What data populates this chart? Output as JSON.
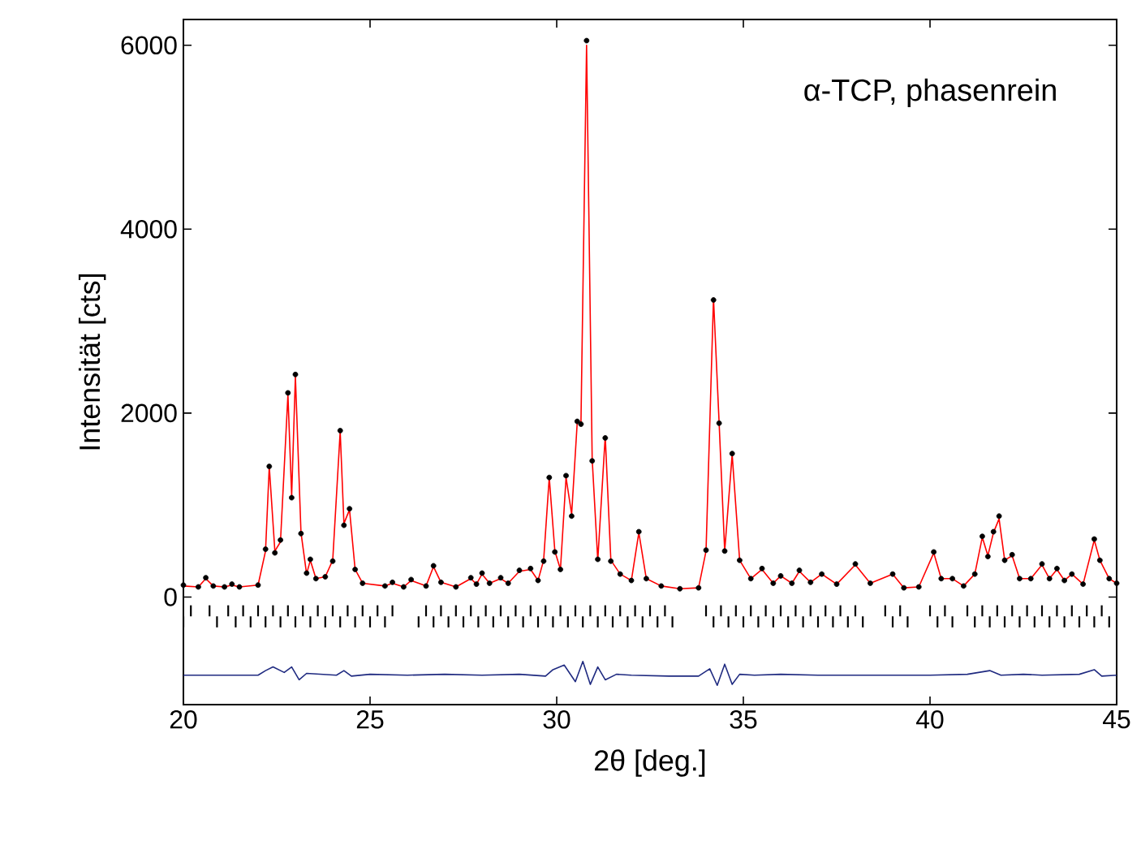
{
  "chart_data": {
    "type": "line",
    "xlabel": "2θ [deg.]",
    "ylabel": "Intensität [cts]",
    "annotations": [
      "α-TCP, phasenrein"
    ],
    "xlim": [
      20,
      45
    ],
    "xticks": [
      20,
      25,
      30,
      35,
      40,
      45
    ],
    "ylim": [
      -1170,
      6280
    ],
    "yticks": [
      0,
      2000,
      4000,
      6000
    ],
    "grid": false,
    "x": [
      20,
      20.4,
      20.6,
      20.8,
      21.1,
      21.3,
      21.5,
      22.0,
      22.2,
      22.3,
      22.45,
      22.6,
      22.8,
      22.9,
      23.0,
      23.15,
      23.3,
      23.4,
      23.55,
      23.8,
      24.0,
      24.2,
      24.3,
      24.45,
      24.6,
      24.8,
      25.4,
      25.6,
      25.9,
      26.1,
      26.5,
      26.7,
      26.9,
      27.3,
      27.7,
      27.85,
      28.0,
      28.2,
      28.5,
      28.7,
      29.0,
      29.3,
      29.5,
      29.65,
      29.8,
      29.95,
      30.1,
      30.25,
      30.4,
      30.55,
      30.65,
      30.8,
      30.95,
      31.1,
      31.3,
      31.45,
      31.7,
      32.0,
      32.2,
      32.4,
      32.8,
      33.3,
      33.8,
      34.0,
      34.2,
      34.35,
      34.5,
      34.7,
      34.9,
      35.2,
      35.5,
      35.8,
      36.0,
      36.3,
      36.5,
      36.8,
      37.1,
      37.5,
      38.0,
      38.4,
      39.0,
      39.3,
      39.7,
      40.1,
      40.3,
      40.6,
      40.9,
      41.2,
      41.4,
      41.55,
      41.7,
      41.85,
      42.0,
      42.2,
      42.4,
      42.7,
      43.0,
      43.2,
      43.4,
      43.6,
      43.8,
      44.1,
      44.4,
      44.55,
      44.8,
      45
    ],
    "series": [
      {
        "type": "scatter",
        "marker": "circle",
        "color": "#000000",
        "values": [
          130,
          110,
          210,
          120,
          110,
          140,
          110,
          130,
          520,
          1420,
          480,
          620,
          2220,
          1080,
          2420,
          690,
          260,
          410,
          200,
          220,
          390,
          1810,
          780,
          960,
          300,
          150,
          120,
          160,
          110,
          190,
          120,
          340,
          160,
          110,
          210,
          140,
          260,
          150,
          210,
          150,
          290,
          310,
          180,
          390,
          1300,
          490,
          300,
          1320,
          880,
          1910,
          1880,
          6050,
          1480,
          410,
          1730,
          390,
          250,
          180,
          710,
          200,
          120,
          90,
          100,
          510,
          3230,
          1890,
          500,
          1560,
          400,
          200,
          310,
          150,
          230,
          150,
          290,
          160,
          250,
          140,
          360,
          150,
          250,
          100,
          110,
          490,
          200,
          200,
          120,
          250,
          660,
          440,
          710,
          880,
          400,
          460,
          200,
          200,
          360,
          200,
          310,
          180,
          250,
          140,
          630,
          400,
          200,
          150
        ]
      },
      {
        "color": "#ff0000",
        "values": [
          120,
          110,
          200,
          120,
          110,
          130,
          110,
          130,
          500,
          1420,
          500,
          600,
          2200,
          1100,
          2400,
          700,
          250,
          400,
          200,
          220,
          400,
          1800,
          800,
          950,
          300,
          150,
          120,
          150,
          110,
          180,
          120,
          330,
          160,
          110,
          200,
          140,
          250,
          150,
          200,
          150,
          280,
          300,
          180,
          400,
          1300,
          500,
          300,
          1300,
          900,
          1900,
          1900,
          6000,
          1500,
          400,
          1750,
          400,
          250,
          180,
          700,
          200,
          120,
          90,
          100,
          500,
          3250,
          1900,
          500,
          1550,
          400,
          200,
          300,
          150,
          230,
          150,
          280,
          160,
          250,
          140,
          350,
          150,
          250,
          100,
          110,
          480,
          200,
          200,
          120,
          250,
          650,
          450,
          700,
          850,
          400,
          450,
          200,
          200,
          350,
          200,
          300,
          180,
          250,
          140,
          620,
          400,
          200,
          150
        ]
      },
      {
        "type": "bar",
        "color": "#000000",
        "x": [
          20.0,
          20.2,
          20.7,
          20.9,
          21.2,
          21.4,
          21.6,
          21.8,
          22.0,
          22.2,
          22.4,
          22.6,
          22.8,
          23.0,
          23.2,
          23.4,
          23.6,
          23.8,
          24.0,
          24.2,
          24.4,
          24.6,
          24.8,
          25.0,
          25.2,
          25.4,
          25.6,
          26.3,
          26.5,
          26.7,
          26.9,
          27.1,
          27.3,
          27.5,
          27.7,
          27.9,
          28.1,
          28.3,
          28.5,
          28.7,
          28.9,
          29.1,
          29.3,
          29.5,
          29.7,
          29.9,
          30.1,
          30.3,
          30.5,
          30.7,
          30.9,
          31.1,
          31.3,
          31.5,
          31.7,
          31.9,
          32.1,
          32.3,
          32.5,
          32.7,
          32.9,
          33.1,
          34.0,
          34.2,
          34.4,
          34.6,
          34.8,
          35.0,
          35.2,
          35.4,
          35.6,
          35.8,
          36.0,
          36.2,
          36.4,
          36.6,
          36.8,
          37.0,
          37.2,
          37.4,
          37.6,
          37.8,
          38.0,
          38.2,
          38.8,
          39.0,
          39.2,
          39.4,
          40.0,
          40.2,
          40.4,
          40.6,
          41.0,
          41.2,
          41.4,
          41.6,
          41.8,
          42.0,
          42.2,
          42.4,
          42.6,
          42.8,
          43.0,
          43.2,
          43.4,
          43.6,
          43.8,
          44.0,
          44.2,
          44.4,
          44.6,
          44.8
        ],
        "base": [
          -330,
          -210,
          -210,
          -330,
          -210,
          -330,
          -210,
          -330,
          -210,
          -330,
          -210,
          -330,
          -210,
          -330,
          -210,
          -330,
          -210,
          -330,
          -210,
          -330,
          -210,
          -330,
          -210,
          -330,
          -210,
          -330,
          -210,
          -330,
          -210,
          -330,
          -210,
          -330,
          -210,
          -330,
          -210,
          -330,
          -210,
          -330,
          -210,
          -330,
          -210,
          -330,
          -210,
          -330,
          -210,
          -330,
          -210,
          -330,
          -210,
          -330,
          -210,
          -330,
          -210,
          -330,
          -210,
          -330,
          -210,
          -330,
          -210,
          -330,
          -210,
          -330,
          -210,
          -330,
          -210,
          -330,
          -210,
          -330,
          -210,
          -330,
          -210,
          -330,
          -210,
          -330,
          -210,
          -330,
          -210,
          -330,
          -210,
          -330,
          -210,
          -330,
          -210,
          -330,
          -210,
          -330,
          -210,
          -330,
          -210,
          -330,
          -210,
          -330,
          -210,
          -330,
          -210,
          -330,
          -210,
          -330,
          -210,
          -330,
          -210,
          -330,
          -210,
          -330,
          -210,
          -330,
          -210,
          -330,
          -210,
          -330,
          -210,
          -330
        ],
        "values": [
          120,
          120,
          120,
          120,
          120,
          120,
          120,
          120,
          120,
          120,
          120,
          120,
          120,
          120,
          120,
          120,
          120,
          120,
          120,
          120,
          120,
          120,
          120,
          120,
          120,
          120,
          120,
          120,
          120,
          120,
          120,
          120,
          120,
          120,
          120,
          120,
          120,
          120,
          120,
          120,
          120,
          120,
          120,
          120,
          120,
          120,
          120,
          120,
          120,
          120,
          120,
          120,
          120,
          120,
          120,
          120,
          120,
          120,
          120,
          120,
          120,
          120,
          120,
          120,
          120,
          120,
          120,
          120,
          120,
          120,
          120,
          120,
          120,
          120,
          120,
          120,
          120,
          120,
          120,
          120,
          120,
          120,
          120,
          120,
          120,
          120,
          120,
          120,
          120,
          120,
          120,
          120,
          120,
          120,
          120,
          120,
          120,
          120,
          120,
          120,
          120,
          120,
          120,
          120,
          120,
          120,
          120,
          120,
          120,
          120,
          120,
          120
        ]
      },
      {
        "color": "#1f2a80",
        "x": [
          20,
          21,
          22,
          22.2,
          22.4,
          22.7,
          22.9,
          23.1,
          23.3,
          24.1,
          24.3,
          24.5,
          25,
          26,
          27,
          28,
          29,
          29.7,
          29.9,
          30.2,
          30.5,
          30.7,
          30.9,
          31.1,
          31.3,
          31.6,
          32,
          33,
          33.8,
          34.1,
          34.3,
          34.5,
          34.7,
          34.9,
          35.3,
          36,
          37,
          38,
          39,
          40,
          41,
          41.6,
          41.9,
          42.5,
          43,
          44,
          44.4,
          44.6,
          45
        ],
        "values": [
          -850,
          -850,
          -850,
          -800,
          -760,
          -820,
          -760,
          -900,
          -830,
          -850,
          -800,
          -860,
          -840,
          -850,
          -840,
          -850,
          -840,
          -860,
          -790,
          -740,
          -920,
          -700,
          -950,
          -760,
          -900,
          -840,
          -850,
          -860,
          -860,
          -780,
          -960,
          -730,
          -950,
          -840,
          -850,
          -840,
          -850,
          -850,
          -850,
          -850,
          -840,
          -800,
          -850,
          -840,
          -850,
          -840,
          -790,
          -860,
          -850
        ]
      }
    ]
  }
}
